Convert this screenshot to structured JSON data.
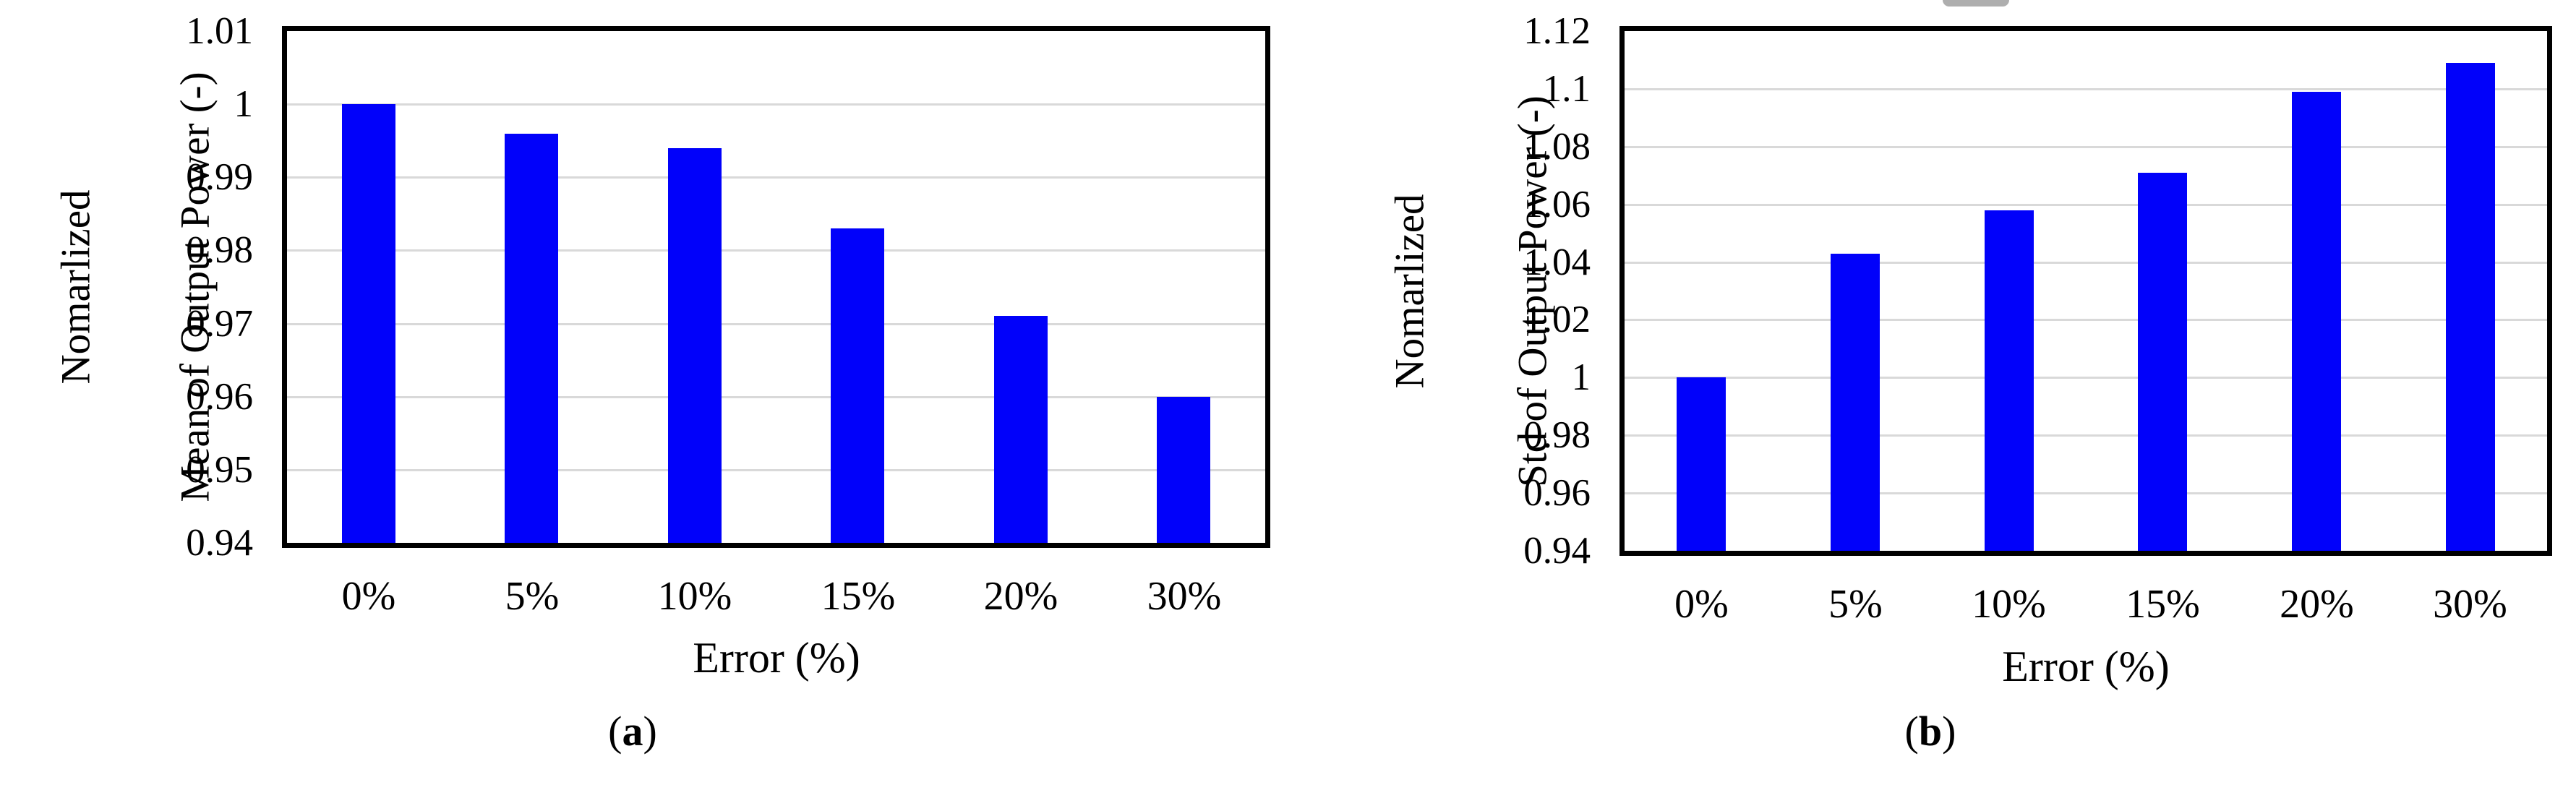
{
  "figure": {
    "background_color": "#ffffff",
    "frame_color": "#000000",
    "gridline_color": "#d9d9d9",
    "artifact_color": "#aeaeae"
  },
  "chart_data": [
    {
      "type": "bar",
      "panel": "a",
      "title": "",
      "categories": [
        "0%",
        "5%",
        "10%",
        "15%",
        "20%",
        "30%"
      ],
      "values": [
        1.0,
        0.996,
        0.994,
        0.983,
        0.971,
        0.96
      ],
      "xlabel": "Error (%)",
      "ylabel_line1": "Nomarlized",
      "ylabel_line2": "Mean of Output Power (-)",
      "ylim": [
        0.94,
        1.01
      ],
      "ytick_values": [
        1.01,
        1.0,
        0.99,
        0.98,
        0.97,
        0.96,
        0.95,
        0.94
      ],
      "ytick_labels": [
        "1.01",
        "1",
        "0.99",
        "0.98",
        "0.97",
        "0.96",
        "0.95",
        "0.94"
      ],
      "grid": "horizontal",
      "legend": "none",
      "bar_color": "#0101fa",
      "caption": {
        "open": "(",
        "letter": "a",
        "close": ")"
      }
    },
    {
      "type": "bar",
      "panel": "b",
      "title": "",
      "categories": [
        "0%",
        "5%",
        "10%",
        "15%",
        "20%",
        "30%"
      ],
      "values": [
        1.0,
        1.043,
        1.058,
        1.071,
        1.099,
        1.109
      ],
      "xlabel": "Error (%)",
      "ylabel_line1": "Nomarlized",
      "ylabel_line2": "Std of Output Power (-)",
      "ylim": [
        0.94,
        1.12
      ],
      "ytick_values": [
        1.12,
        1.1,
        1.08,
        1.06,
        1.04,
        1.02,
        1.0,
        0.98,
        0.96,
        0.94
      ],
      "ytick_labels": [
        "1.12",
        "1.1",
        "1.08",
        "1.06",
        "1.04",
        "1.02",
        "1",
        "0.98",
        "0.96",
        "0.94"
      ],
      "grid": "horizontal",
      "legend": "none",
      "bar_color": "#0101fa",
      "caption": {
        "open": "(",
        "letter": "b",
        "close": ")"
      }
    }
  ]
}
